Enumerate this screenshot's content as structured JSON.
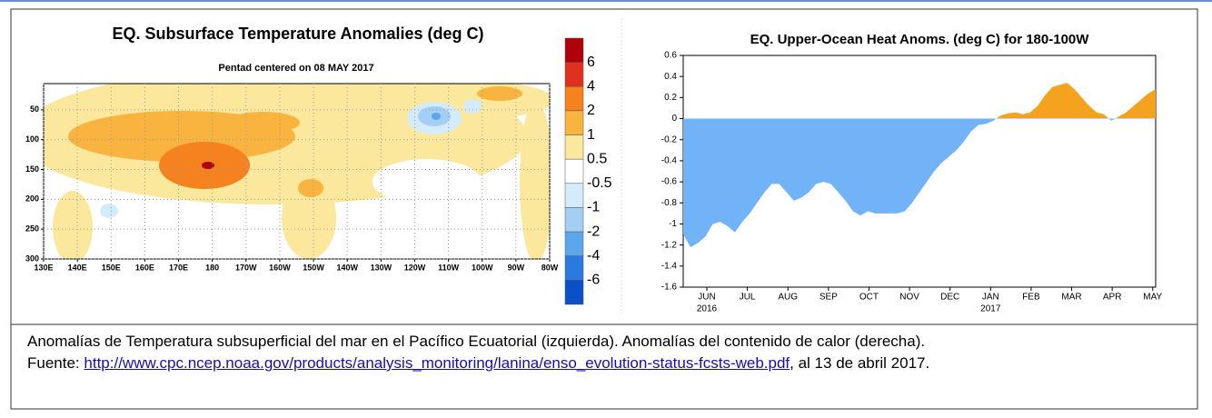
{
  "chart_data": [
    {
      "type": "contour",
      "title": "EQ. Subsurface Temperature Anomalies (deg C)",
      "subtitle": "Pentad centered on 08 MAY 2017",
      "xlim": [
        130,
        280
      ],
      "xticks": [
        {
          "value": 130,
          "label": "130E"
        },
        {
          "value": 140,
          "label": "140E"
        },
        {
          "value": 150,
          "label": "150E"
        },
        {
          "value": 160,
          "label": "160E"
        },
        {
          "value": 170,
          "label": "170E"
        },
        180,
        {
          "value": 190,
          "label": "170W"
        },
        {
          "value": 200,
          "label": "160W"
        },
        {
          "value": 210,
          "label": "150W"
        },
        {
          "value": 220,
          "label": "140W"
        },
        {
          "value": 230,
          "label": "130W"
        },
        {
          "value": 240,
          "label": "120W"
        },
        {
          "value": 250,
          "label": "110W"
        },
        {
          "value": 260,
          "label": "100W"
        },
        {
          "value": 270,
          "label": "90W"
        },
        {
          "value": 280,
          "label": "80W"
        }
      ],
      "ylim": [
        300,
        0
      ],
      "yticks": [
        50,
        100,
        150,
        200,
        250,
        300
      ],
      "grid": true,
      "levels": [
        6,
        4,
        2,
        1,
        0.5,
        -0.5,
        -1,
        -2,
        -4,
        -6
      ],
      "level_colors": [
        "#b0000a",
        "#e0301e",
        "#f5821f",
        "#f9b440",
        "#fbe89c",
        "#ffffff",
        "#d4ebfb",
        "#a3cff4",
        "#5ea6ec",
        "#2b7ae0",
        "#0b4fc9"
      ]
    },
    {
      "type": "area",
      "title": "EQ. Upper-Ocean Heat Anoms. (deg C) for 180-100W",
      "months": [
        "JUN",
        "JUL",
        "AUG",
        "SEP",
        "OCT",
        "NOV",
        "DEC",
        "JAN",
        "FEB",
        "MAR",
        "APR",
        "MAY"
      ],
      "annotations": [
        "2016",
        "2017"
      ],
      "values": [
        -1.1,
        -1.22,
        -1.18,
        -1.12,
        -1.0,
        -0.98,
        -1.02,
        -1.08,
        -0.98,
        -0.9,
        -0.8,
        -0.7,
        -0.62,
        -0.62,
        -0.7,
        -0.78,
        -0.75,
        -0.7,
        -0.62,
        -0.6,
        -0.62,
        -0.7,
        -0.78,
        -0.88,
        -0.92,
        -0.88,
        -0.9,
        -0.9,
        -0.9,
        -0.9,
        -0.88,
        -0.8,
        -0.7,
        -0.6,
        -0.5,
        -0.42,
        -0.36,
        -0.3,
        -0.22,
        -0.12,
        -0.06,
        -0.05,
        -0.02,
        0.03,
        0.05,
        0.06,
        0.04,
        0.06,
        0.12,
        0.22,
        0.3,
        0.32,
        0.34,
        0.28,
        0.2,
        0.12,
        0.06,
        0.04,
        -0.02,
        0.02,
        0.06,
        0.12,
        0.18,
        0.24,
        0.28
      ],
      "ylim": [
        -1.6,
        0.6
      ],
      "yticks": [
        0.6,
        0.4,
        0.2,
        0,
        -0.2,
        -0.4,
        -0.6,
        -0.8,
        -1,
        -1.2,
        -1.4,
        -1.6
      ],
      "positive_color": "#f5a31e",
      "negative_color": "#72b2f6"
    }
  ],
  "caption": {
    "line1": "Anomalías de Temperatura subsuperficial del mar en el Pacífico Ecuatorial (izquierda). Anomalías del contenido de calor (derecha).",
    "source_label": "Fuente:",
    "url": "http://www.cpc.ncep.noaa.gov/products/analysis_monitoring/lanina/enso_evolution-status-fcsts-web.pdf",
    "suffix": ", al 13 de abril 2017."
  }
}
